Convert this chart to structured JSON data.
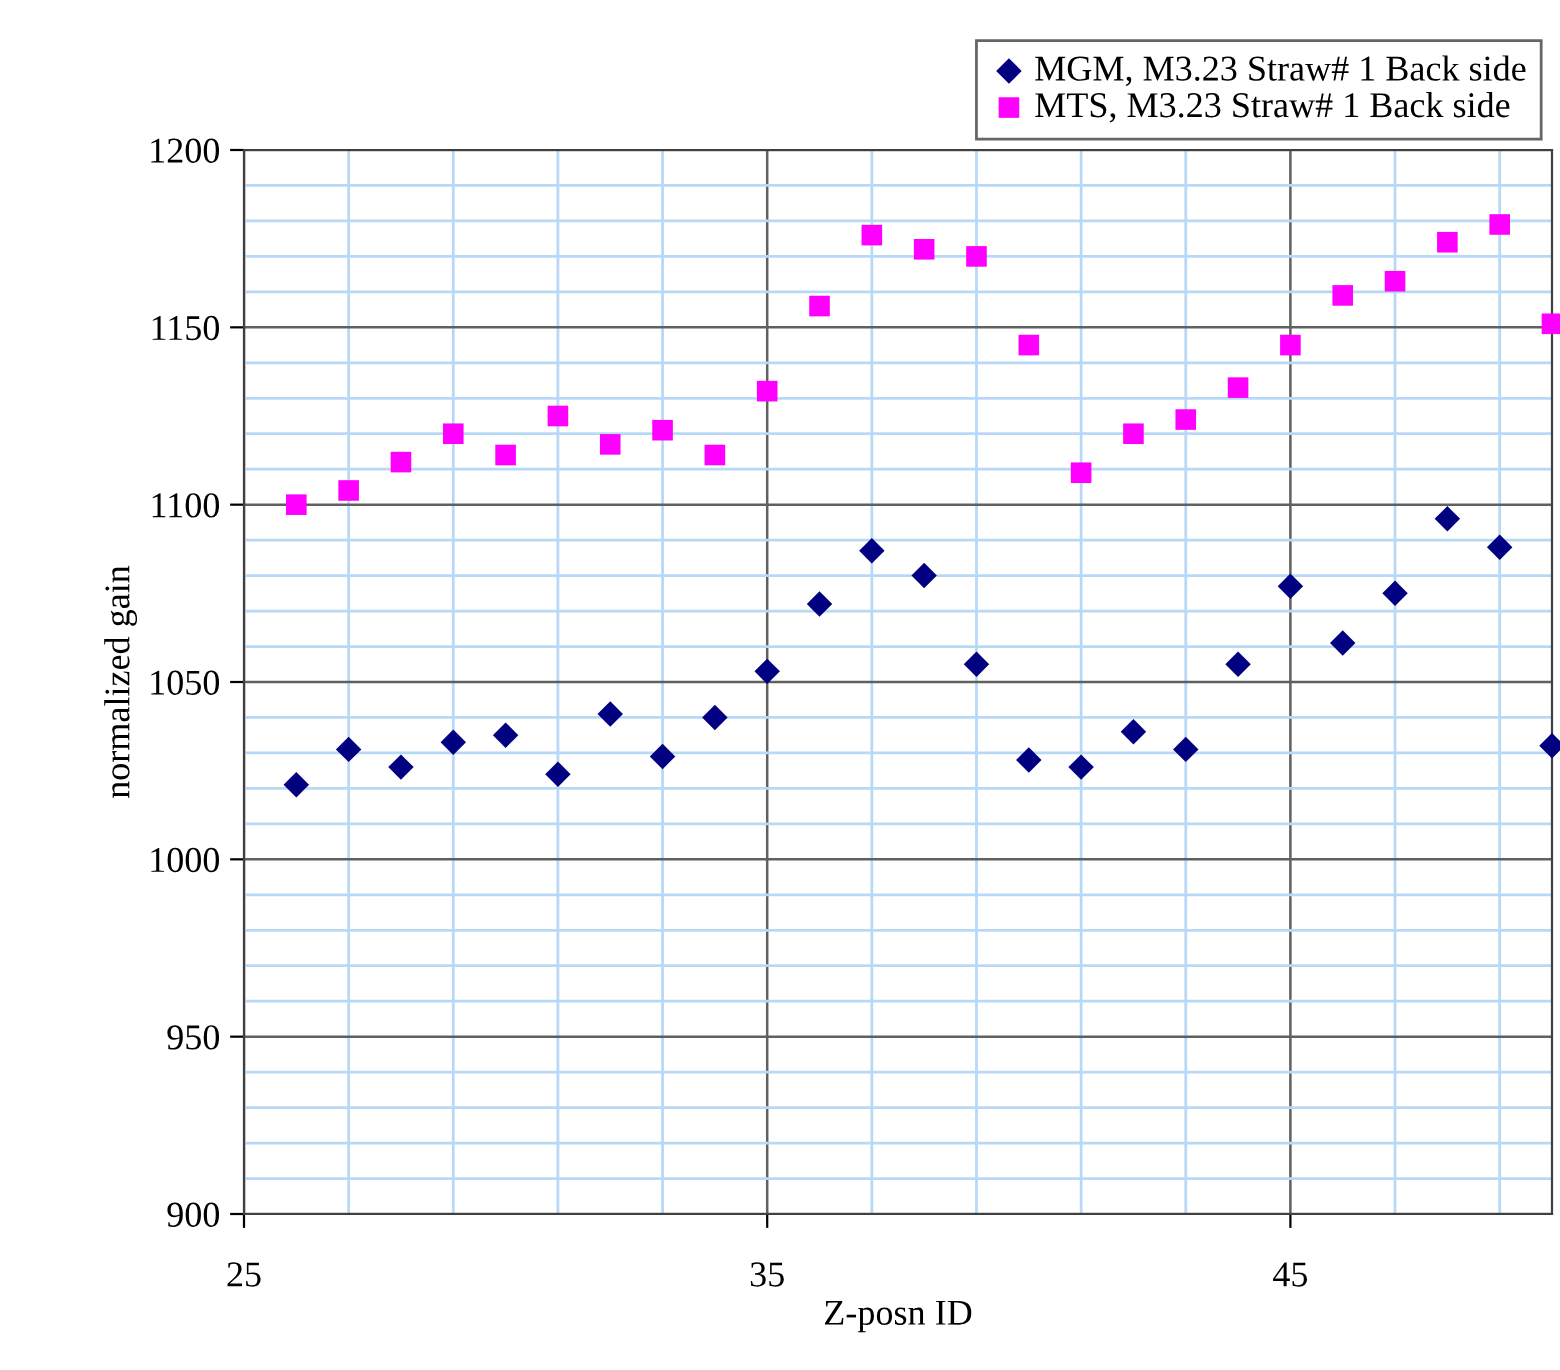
{
  "chart_data": {
    "type": "scatter",
    "xlabel": "Z-posn ID",
    "ylabel": "normalized gain",
    "x": [
      26,
      27,
      28,
      29,
      30,
      31,
      32,
      33,
      34,
      35,
      36,
      37,
      38,
      39,
      40,
      41,
      42,
      43,
      44,
      45,
      46,
      47,
      48,
      49,
      50
    ],
    "series": [
      {
        "name": "MGM, M3.23 Straw# 1 Back side",
        "color": "#000080",
        "marker": "diamond",
        "values": [
          1021,
          1031,
          1026,
          1033,
          1035,
          1024,
          1041,
          1029,
          1040,
          1053,
          1072,
          1087,
          1080,
          1055,
          1028,
          1026,
          1036,
          1031,
          1055,
          1077,
          1061,
          1075,
          1096,
          1088,
          1032
        ]
      },
      {
        "name": "MTS, M3.23 Straw# 1 Back side",
        "color": "#ff00ff",
        "marker": "square",
        "values": [
          1100,
          1104,
          1112,
          1120,
          1114,
          1125,
          1117,
          1121,
          1114,
          1132,
          1156,
          1176,
          1172,
          1170,
          1145,
          1109,
          1120,
          1124,
          1133,
          1145,
          1159,
          1163,
          1174,
          1179,
          1151
        ]
      }
    ],
    "xlim": [
      25,
      50
    ],
    "xticks": [
      25,
      {
        "value": 27,
        "label": null
      },
      {
        "value": 29,
        "label": null
      },
      {
        "value": 31,
        "label": null
      },
      {
        "value": 33,
        "label": null
      },
      35,
      {
        "value": 37,
        "label": null
      },
      {
        "value": 39,
        "label": null
      },
      {
        "value": 41,
        "label": null
      },
      {
        "value": 43,
        "label": null
      },
      45,
      {
        "value": 47,
        "label": null
      },
      {
        "value": 49,
        "label": null
      }
    ],
    "ylim": [
      900,
      1200
    ],
    "yticks": [
      900,
      {
        "value": 910,
        "label": null
      },
      {
        "value": 920,
        "label": null
      },
      {
        "value": 930,
        "label": null
      },
      {
        "value": 940,
        "label": null
      },
      950,
      {
        "value": 960,
        "label": null
      },
      {
        "value": 970,
        "label": null
      },
      {
        "value": 980,
        "label": null
      },
      {
        "value": 990,
        "label": null
      },
      1000,
      {
        "value": 1010,
        "label": null
      },
      {
        "value": 1020,
        "label": null
      },
      {
        "value": 1030,
        "label": null
      },
      {
        "value": 1040,
        "label": null
      },
      1050,
      {
        "value": 1060,
        "label": null
      },
      {
        "value": 1070,
        "label": null
      },
      {
        "value": 1080,
        "label": null
      },
      {
        "value": 1090,
        "label": null
      },
      1100,
      {
        "value": 1110,
        "label": null
      },
      {
        "value": 1120,
        "label": null
      },
      {
        "value": 1130,
        "label": null
      },
      {
        "value": 1140,
        "label": null
      },
      1150,
      {
        "value": 1160,
        "label": null
      },
      {
        "value": 1170,
        "label": null
      },
      {
        "value": 1180,
        "label": null
      },
      {
        "value": 1190,
        "label": null
      },
      1200
    ],
    "grid": true,
    "legend": "top right"
  }
}
